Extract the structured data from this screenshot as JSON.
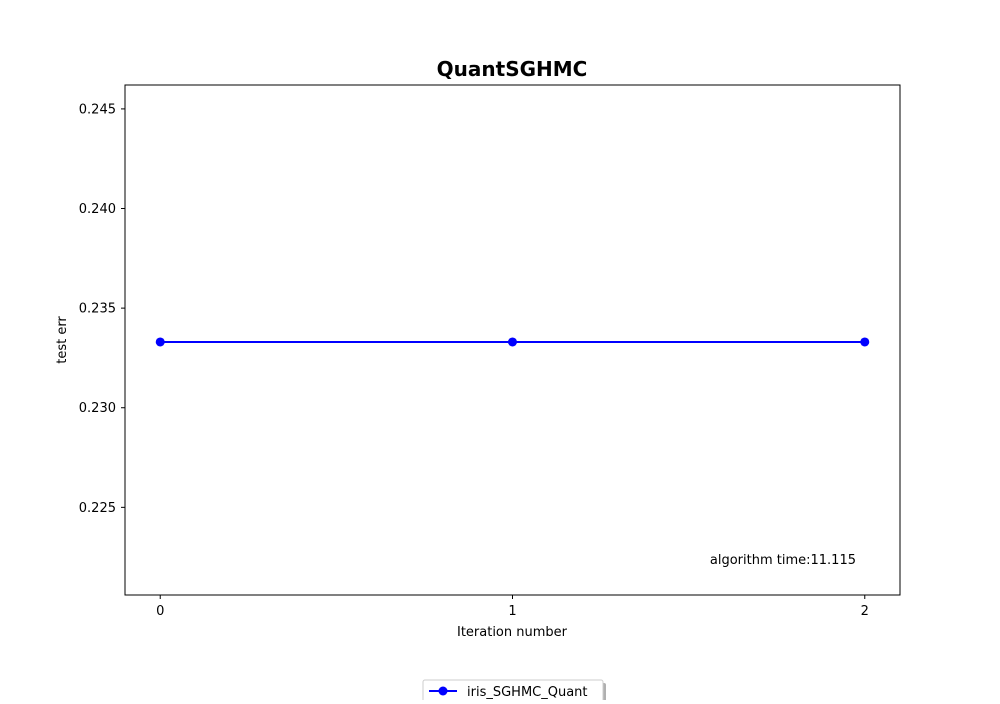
{
  "chart_data": {
    "type": "line",
    "title": "QuantSGHMC",
    "xlabel": "Iteration number",
    "ylabel": "test err",
    "x": [
      0,
      1,
      2
    ],
    "x_ticks": [
      "0",
      "1",
      "2"
    ],
    "xlim": [
      -0.1,
      2.1
    ],
    "ylim": [
      0.2206,
      0.2462
    ],
    "y_ticks": [
      0.225,
      0.23,
      0.235,
      0.24,
      0.245
    ],
    "y_tick_labels": [
      "0.225",
      "0.230",
      "0.235",
      "0.240",
      "0.245"
    ],
    "grid": false,
    "series": [
      {
        "name": "iris_SGHMC_Quant",
        "values": [
          0.2333,
          0.2333,
          0.2333
        ],
        "color": "#0000ff",
        "marker": "circle"
      }
    ],
    "annotation": "algorithm time:11.115",
    "legend_position": "bottom-center, below the plot"
  }
}
